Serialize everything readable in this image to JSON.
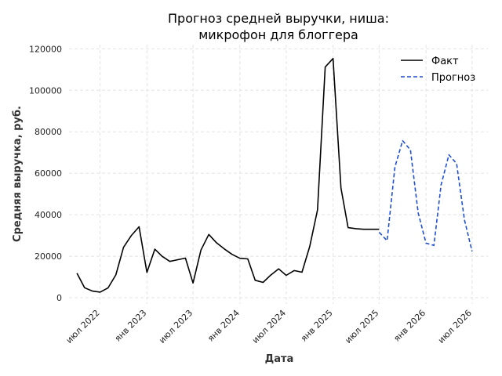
{
  "chart_data": {
    "type": "line",
    "title_lines": [
      "Прогноз средней выручки, ниша:",
      "микрофон для блоггера"
    ],
    "xlabel": "Дата",
    "ylabel": "Средняя выручка, руб.",
    "ylim": [
      -3000,
      122000
    ],
    "xlim": [
      "2022-03-01",
      "2026-09-01"
    ],
    "yticks": [
      0,
      20000,
      40000,
      60000,
      80000,
      100000,
      120000
    ],
    "xticks": [
      {
        "date": "2022-07-01",
        "label": "июл 2022"
      },
      {
        "date": "2023-01-01",
        "label": "янв 2023"
      },
      {
        "date": "2023-07-01",
        "label": "июл 2023"
      },
      {
        "date": "2024-01-01",
        "label": "янв 2024"
      },
      {
        "date": "2024-07-01",
        "label": "июл 2024"
      },
      {
        "date": "2025-01-01",
        "label": "янв 2025"
      },
      {
        "date": "2025-07-01",
        "label": "июл 2025"
      },
      {
        "date": "2026-01-01",
        "label": "янв 2026"
      },
      {
        "date": "2026-07-01",
        "label": "июл 2026"
      }
    ],
    "grid": true,
    "legend_position": "top-right",
    "series": [
      {
        "name": "Факт",
        "color": "#000000",
        "style": "solid",
        "x": [
          "2022-04-01",
          "2022-05-01",
          "2022-06-01",
          "2022-07-01",
          "2022-08-01",
          "2022-09-01",
          "2022-10-01",
          "2022-11-01",
          "2022-12-01",
          "2023-01-01",
          "2023-02-01",
          "2023-03-01",
          "2023-04-01",
          "2023-05-01",
          "2023-06-01",
          "2023-07-01",
          "2023-08-01",
          "2023-09-01",
          "2023-10-01",
          "2023-11-01",
          "2023-12-01",
          "2024-01-01",
          "2024-02-01",
          "2024-03-01",
          "2024-04-01",
          "2024-05-01",
          "2024-06-01",
          "2024-07-01",
          "2024-08-01",
          "2024-09-01",
          "2024-10-01",
          "2024-11-01",
          "2024-12-01",
          "2025-01-01",
          "2025-02-01",
          "2025-03-01",
          "2025-04-01",
          "2025-05-01",
          "2025-06-01",
          "2025-07-01"
        ],
        "values": [
          11800,
          4800,
          3200,
          2700,
          4700,
          11000,
          24300,
          30000,
          34200,
          12200,
          23400,
          20000,
          17500,
          18300,
          19100,
          7100,
          23000,
          30500,
          26500,
          23500,
          20900,
          19000,
          18700,
          8400,
          7400,
          10900,
          13900,
          10800,
          13100,
          12300,
          24600,
          42300,
          111200,
          115300,
          52900,
          33800,
          33300,
          33000,
          33000,
          33000
        ]
      },
      {
        "name": "Прогноз",
        "color": "#1f4fd1",
        "style": "dashed",
        "x": [
          "2025-07-01",
          "2025-08-01",
          "2025-09-01",
          "2025-10-01",
          "2025-11-01",
          "2025-12-01",
          "2026-01-01",
          "2026-02-01",
          "2026-03-01",
          "2026-04-01",
          "2026-05-01",
          "2026-06-01",
          "2026-07-01"
        ],
        "values": [
          31500,
          27500,
          63000,
          75700,
          71200,
          41000,
          26300,
          25200,
          54300,
          68900,
          64700,
          37600,
          22300
        ]
      }
    ]
  }
}
